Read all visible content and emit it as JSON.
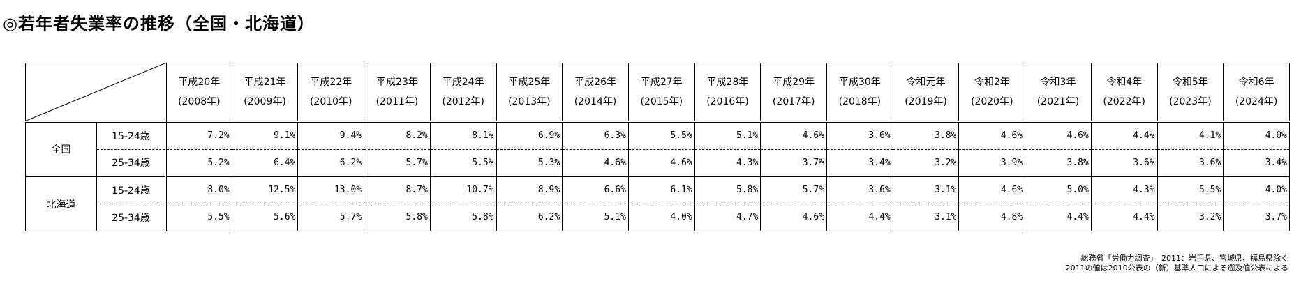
{
  "title": "◎若年者失業率の推移（全国・北海道）",
  "years": [
    {
      "era": "平成20年",
      "ad": "(2008年)"
    },
    {
      "era": "平成21年",
      "ad": "(2009年)"
    },
    {
      "era": "平成22年",
      "ad": "(2010年)"
    },
    {
      "era": "平成23年",
      "ad": "(2011年)"
    },
    {
      "era": "平成24年",
      "ad": "(2012年)"
    },
    {
      "era": "平成25年",
      "ad": "(2013年)"
    },
    {
      "era": "平成26年",
      "ad": "(2014年)"
    },
    {
      "era": "平成27年",
      "ad": "(2015年)"
    },
    {
      "era": "平成28年",
      "ad": "(2016年)"
    },
    {
      "era": "平成29年",
      "ad": "(2017年)"
    },
    {
      "era": "平成30年",
      "ad": "(2018年)"
    },
    {
      "era": "令和元年",
      "ad": "(2019年)"
    },
    {
      "era": "令和2年",
      "ad": "(2020年)"
    },
    {
      "era": "令和3年",
      "ad": "(2021年)"
    },
    {
      "era": "令和4年",
      "ad": "(2022年)"
    },
    {
      "era": "令和5年",
      "ad": "(2023年)"
    },
    {
      "era": "令和6年",
      "ad": "(2024年)"
    }
  ],
  "regions": [
    {
      "name": "全国",
      "rows": [
        {
          "age": "15-24歳",
          "values": [
            "7.2%",
            "9.1%",
            "9.4%",
            "8.2%",
            "8.1%",
            "6.9%",
            "6.3%",
            "5.5%",
            "5.1%",
            "4.6%",
            "3.6%",
            "3.8%",
            "4.6%",
            "4.6%",
            "4.4%",
            "4.1%",
            "4.0%"
          ]
        },
        {
          "age": "25-34歳",
          "values": [
            "5.2%",
            "6.4%",
            "6.2%",
            "5.7%",
            "5.5%",
            "5.3%",
            "4.6%",
            "4.6%",
            "4.3%",
            "3.7%",
            "3.4%",
            "3.2%",
            "3.9%",
            "3.8%",
            "3.6%",
            "3.6%",
            "3.4%"
          ]
        }
      ]
    },
    {
      "name": "北海道",
      "rows": [
        {
          "age": "15-24歳",
          "values": [
            "8.0%",
            "12.5%",
            "13.0%",
            "8.7%",
            "10.7%",
            "8.9%",
            "6.6%",
            "6.1%",
            "5.8%",
            "5.7%",
            "3.6%",
            "3.1%",
            "4.6%",
            "5.0%",
            "4.3%",
            "5.5%",
            "4.0%"
          ]
        },
        {
          "age": "25-34歳",
          "values": [
            "5.5%",
            "5.6%",
            "5.7%",
            "5.8%",
            "5.8%",
            "6.2%",
            "5.1%",
            "4.0%",
            "4.7%",
            "4.6%",
            "4.4%",
            "3.1%",
            "4.8%",
            "4.4%",
            "4.4%",
            "3.2%",
            "3.7%"
          ]
        }
      ]
    }
  ],
  "source": {
    "line1": "総務省「労働力調査」　2011：岩手県、宮城県、福島県除く",
    "line2": "2011の値は2010公表の（新）基準人口による遡及値公表による"
  }
}
